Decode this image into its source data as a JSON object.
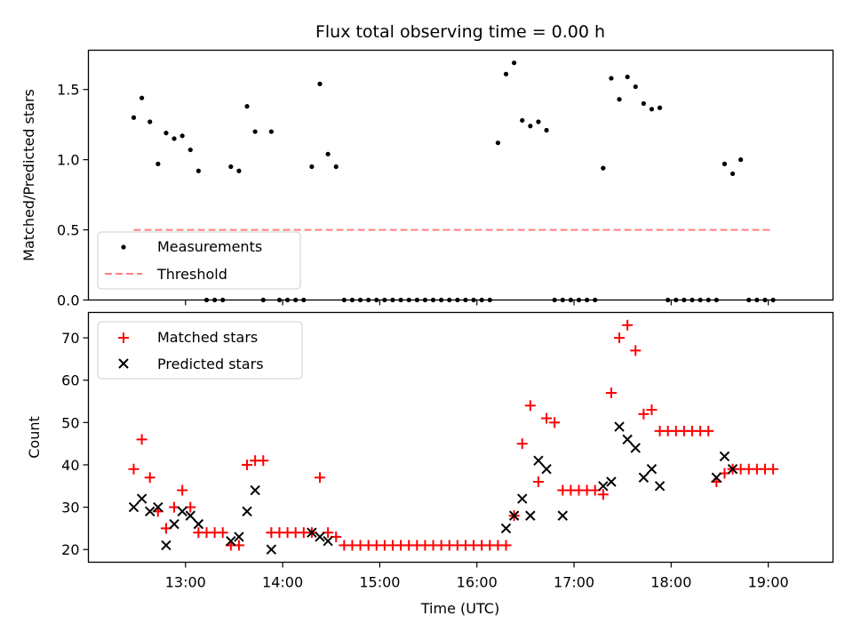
{
  "chart_data": [
    {
      "type": "scatter",
      "title": "Flux total observing time = 0.00 h",
      "xlabel": "",
      "ylabel": "Matched/Predicted stars",
      "ylim": [
        0,
        1.78
      ],
      "yticks": [
        "0.0",
        "0.5",
        "1.0",
        "1.5"
      ],
      "ytick_values": [
        0,
        0.5,
        1.0,
        1.5
      ],
      "xtick_labels_shown": false,
      "legend": {
        "placement": "lower-left",
        "entries": [
          "Measurements",
          "Threshold"
        ]
      },
      "series": [
        {
          "name": "Measurements",
          "color": "#000000",
          "x": [
            "12:28",
            "12:33",
            "12:38",
            "12:43",
            "12:48",
            "12:53",
            "12:58",
            "13:03",
            "13:08",
            "13:13",
            "13:18",
            "13:23",
            "13:28",
            "13:33",
            "13:38",
            "13:43",
            "13:48",
            "13:53",
            "13:58",
            "14:03",
            "14:08",
            "14:13",
            "14:18",
            "14:23",
            "14:28",
            "14:33",
            "14:38",
            "14:43",
            "14:48",
            "14:53",
            "14:58",
            "15:03",
            "15:08",
            "15:13",
            "15:18",
            "15:23",
            "15:28",
            "15:33",
            "15:38",
            "15:43",
            "15:48",
            "15:53",
            "15:58",
            "16:03",
            "16:08",
            "16:13",
            "16:18",
            "16:23",
            "16:28",
            "16:33",
            "16:38",
            "16:43",
            "16:48",
            "16:53",
            "16:58",
            "17:03",
            "17:08",
            "17:13",
            "17:18",
            "17:23",
            "17:28",
            "17:33",
            "17:38",
            "17:43",
            "17:48",
            "17:53",
            "17:58",
            "18:03",
            "18:08",
            "18:13",
            "18:18",
            "18:23",
            "18:28",
            "18:33",
            "18:38",
            "18:43",
            "18:48",
            "18:53",
            "18:58",
            "19:03"
          ],
          "y": [
            1.3,
            1.44,
            1.27,
            0.97,
            1.19,
            1.15,
            1.17,
            1.07,
            0.92,
            0,
            0,
            0,
            0.95,
            0.92,
            1.38,
            1.2,
            0,
            1.2,
            0,
            0,
            0,
            0,
            0.95,
            1.54,
            1.04,
            0.95,
            0,
            0,
            0,
            0,
            0,
            0,
            0,
            0,
            0,
            0,
            0,
            0,
            0,
            0,
            0,
            0,
            0,
            0,
            0,
            1.12,
            1.61,
            1.69,
            1.28,
            1.24,
            1.27,
            1.21,
            0,
            0,
            0,
            0,
            0,
            0,
            0.94,
            1.58,
            1.43,
            1.59,
            1.52,
            1.4,
            1.36,
            1.37,
            0,
            0,
            0,
            0,
            0,
            0,
            0,
            0.97,
            0.9,
            1.0,
            0,
            0,
            0,
            0
          ]
        },
        {
          "name": "Threshold",
          "color": "#ff8080",
          "style": "dashed",
          "x": [
            "12:28",
            "19:03"
          ],
          "y": [
            0.5,
            0.5
          ]
        }
      ]
    },
    {
      "type": "scatter",
      "title": "",
      "xlabel": "Time (UTC)",
      "ylabel": "Count",
      "ylim": [
        17,
        76
      ],
      "xlim": [
        "12:00",
        "19:40"
      ],
      "xticks": [
        "13:00",
        "14:00",
        "15:00",
        "16:00",
        "17:00",
        "18:00",
        "19:00"
      ],
      "yticks": [
        "20",
        "30",
        "40",
        "50",
        "60",
        "70"
      ],
      "ytick_values": [
        20,
        30,
        40,
        50,
        60,
        70
      ],
      "legend": {
        "placement": "upper-left",
        "entries": [
          "Matched stars",
          "Predicted stars"
        ]
      },
      "series": [
        {
          "name": "Matched stars",
          "color": "#ff0000",
          "marker": "+",
          "x": [
            "12:28",
            "12:33",
            "12:38",
            "12:43",
            "12:48",
            "12:53",
            "12:58",
            "13:03",
            "13:08",
            "13:13",
            "13:18",
            "13:23",
            "13:28",
            "13:33",
            "13:38",
            "13:43",
            "13:48",
            "13:53",
            "13:58",
            "14:03",
            "14:08",
            "14:13",
            "14:18",
            "14:23",
            "14:28",
            "14:33",
            "14:38",
            "14:43",
            "14:48",
            "14:53",
            "14:58",
            "15:03",
            "15:08",
            "15:13",
            "15:18",
            "15:23",
            "15:28",
            "15:33",
            "15:38",
            "15:43",
            "15:48",
            "15:53",
            "15:58",
            "16:03",
            "16:08",
            "16:13",
            "16:18",
            "16:23",
            "16:28",
            "16:33",
            "16:38",
            "16:43",
            "16:48",
            "16:53",
            "16:58",
            "17:03",
            "17:08",
            "17:13",
            "17:18",
            "17:23",
            "17:28",
            "17:33",
            "17:38",
            "17:43",
            "17:48",
            "17:53",
            "17:58",
            "18:03",
            "18:08",
            "18:13",
            "18:18",
            "18:23",
            "18:28",
            "18:33",
            "18:38",
            "18:43",
            "18:48",
            "18:53",
            "18:58",
            "19:03"
          ],
          "y": [
            39,
            46,
            37,
            29,
            25,
            30,
            34,
            30,
            24,
            24,
            24,
            24,
            21,
            21,
            40,
            41,
            41,
            24,
            24,
            24,
            24,
            24,
            24,
            37,
            24,
            23,
            21,
            21,
            21,
            21,
            21,
            21,
            21,
            21,
            21,
            21,
            21,
            21,
            21,
            21,
            21,
            21,
            21,
            21,
            21,
            21,
            21,
            28,
            45,
            54,
            36,
            51,
            50,
            34,
            34,
            34,
            34,
            34,
            33,
            57,
            70,
            73,
            67,
            52,
            53,
            48,
            48,
            48,
            48,
            48,
            48,
            48,
            36,
            38,
            39,
            39,
            39,
            39,
            39,
            39
          ]
        },
        {
          "name": "Predicted stars",
          "color": "#000000",
          "marker": "x",
          "x": [
            "12:28",
            "12:33",
            "12:38",
            "12:43",
            "12:48",
            "12:53",
            "12:58",
            "13:03",
            "13:08",
            "13:28",
            "13:33",
            "13:38",
            "13:43",
            "13:53",
            "14:18",
            "14:23",
            "14:28",
            "16:18",
            "16:23",
            "16:28",
            "16:33",
            "16:38",
            "16:43",
            "16:53",
            "17:18",
            "17:23",
            "17:28",
            "17:33",
            "17:38",
            "17:43",
            "17:48",
            "17:53",
            "18:28",
            "18:33",
            "18:38"
          ],
          "y": [
            30,
            32,
            29,
            30,
            21,
            26,
            29,
            28,
            26,
            22,
            23,
            29,
            34,
            20,
            24,
            23,
            22,
            25,
            28,
            32,
            28,
            41,
            39,
            28,
            35,
            36,
            49,
            46,
            44,
            37,
            39,
            35,
            37,
            42,
            39
          ]
        }
      ]
    }
  ]
}
